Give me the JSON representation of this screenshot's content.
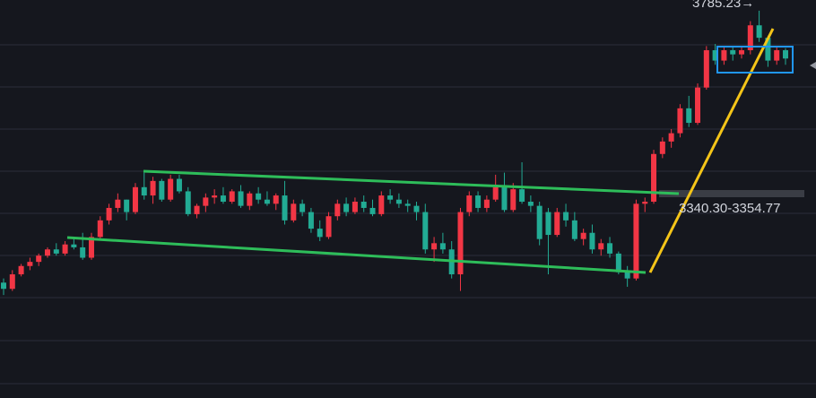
{
  "chart_data": {
    "type": "candlestick",
    "ylim": [
      2852,
      3811
    ],
    "up_color": "#f23645",
    "down_color": "#22ab94",
    "high_label": "3785.23→",
    "zone_label": "3340.30-3354.77",
    "open": [
      3130,
      3115,
      3150,
      3170,
      3180,
      3195,
      3210,
      3200,
      3222,
      3215,
      3190,
      3240,
      3280,
      3310,
      3330,
      3300,
      3360,
      3340,
      3375,
      3330,
      3380,
      3350,
      3295,
      3315,
      3335,
      3340,
      3325,
      3350,
      3315,
      3345,
      3330,
      3320,
      3340,
      3280,
      3320,
      3300,
      3260,
      3240,
      3290,
      3320,
      3300,
      3325,
      3310,
      3295,
      3340,
      3330,
      3320,
      3315,
      3300,
      3210,
      3225,
      3210,
      3150,
      3300,
      3340,
      3310,
      3330,
      3360,
      3305,
      3355,
      3325,
      3315,
      3300,
      3245,
      3300,
      3280,
      3235,
      3250,
      3210,
      3225,
      3200,
      3155,
      3140,
      3320,
      3325,
      3440,
      3470,
      3490,
      3550,
      3515,
      3600,
      3690,
      3665,
      3690,
      3680,
      3690,
      3750,
      3720,
      3665,
      3690
    ],
    "high": [
      3140,
      3160,
      3175,
      3190,
      3200,
      3215,
      3225,
      3230,
      3240,
      3250,
      3250,
      3290,
      3320,
      3345,
      3330,
      3370,
      3395,
      3385,
      3380,
      3390,
      3390,
      3360,
      3320,
      3345,
      3355,
      3360,
      3355,
      3365,
      3350,
      3360,
      3350,
      3345,
      3375,
      3330,
      3330,
      3310,
      3280,
      3300,
      3330,
      3335,
      3335,
      3340,
      3330,
      3350,
      3355,
      3345,
      3330,
      3325,
      3320,
      3240,
      3250,
      3230,
      3310,
      3350,
      3350,
      3340,
      3390,
      3395,
      3370,
      3420,
      3340,
      3325,
      3310,
      3310,
      3320,
      3300,
      3260,
      3270,
      3235,
      3240,
      3205,
      3170,
      3330,
      3335,
      3450,
      3480,
      3500,
      3560,
      3580,
      3610,
      3700,
      3705,
      3700,
      3700,
      3700,
      3760,
      3785.23,
      3725,
      3700,
      3695
    ],
    "low": [
      3100,
      3110,
      3145,
      3160,
      3170,
      3190,
      3195,
      3195,
      3210,
      3185,
      3185,
      3235,
      3270,
      3300,
      3280,
      3295,
      3330,
      3320,
      3325,
      3325,
      3345,
      3290,
      3285,
      3300,
      3320,
      3320,
      3320,
      3310,
      3305,
      3320,
      3315,
      3305,
      3270,
      3275,
      3290,
      3250,
      3230,
      3235,
      3280,
      3290,
      3295,
      3300,
      3290,
      3290,
      3320,
      3310,
      3300,
      3280,
      3200,
      3180,
      3200,
      3140,
      3110,
      3290,
      3300,
      3300,
      3325,
      3300,
      3300,
      3320,
      3300,
      3220,
      3150,
      3240,
      3265,
      3230,
      3220,
      3200,
      3195,
      3190,
      3150,
      3120,
      3135,
      3300,
      3320,
      3430,
      3455,
      3480,
      3505,
      3510,
      3595,
      3655,
      3655,
      3665,
      3670,
      3680,
      3710,
      3650,
      3655,
      3655
    ],
    "close": [
      3115,
      3150,
      3170,
      3180,
      3195,
      3210,
      3200,
      3222,
      3215,
      3190,
      3240,
      3280,
      3310,
      3330,
      3300,
      3360,
      3340,
      3375,
      3330,
      3380,
      3350,
      3295,
      3315,
      3335,
      3340,
      3325,
      3350,
      3315,
      3345,
      3330,
      3320,
      3340,
      3280,
      3320,
      3300,
      3260,
      3240,
      3290,
      3320,
      3300,
      3325,
      3310,
      3295,
      3340,
      3330,
      3320,
      3315,
      3300,
      3210,
      3225,
      3210,
      3150,
      3300,
      3340,
      3310,
      3330,
      3360,
      3305,
      3355,
      3325,
      3315,
      3235,
      3245,
      3300,
      3280,
      3235,
      3250,
      3210,
      3225,
      3200,
      3155,
      3140,
      3320,
      3325,
      3440,
      3470,
      3490,
      3550,
      3515,
      3600,
      3690,
      3665,
      3690,
      3680,
      3690,
      3750,
      3720,
      3665,
      3690,
      3670
    ]
  }
}
